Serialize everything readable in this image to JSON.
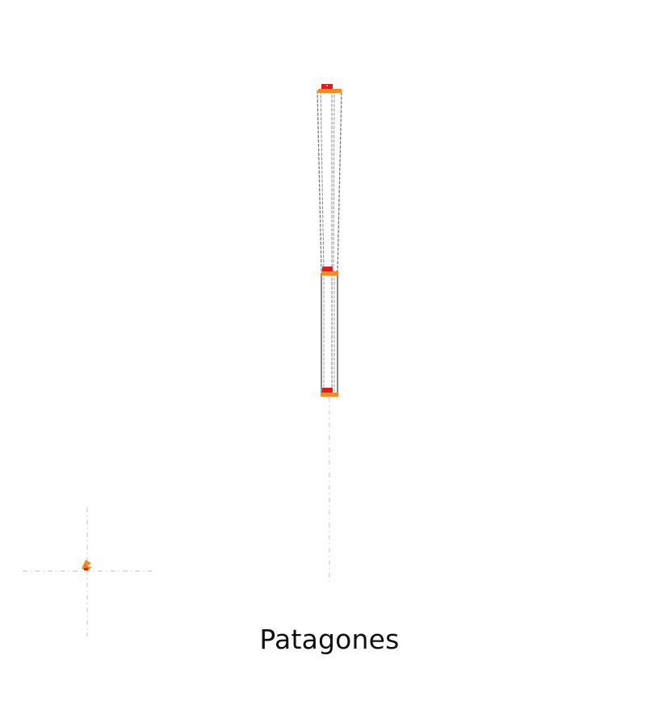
{
  "title": "Patagones",
  "colors": {
    "background": "#ffffff",
    "outline": "#555555",
    "dashed_outline": "#7a7a7a",
    "guide": "#cccccc",
    "band_red": "#e31a1c",
    "band_orange": "#f28c28",
    "text": "#111111"
  }
}
